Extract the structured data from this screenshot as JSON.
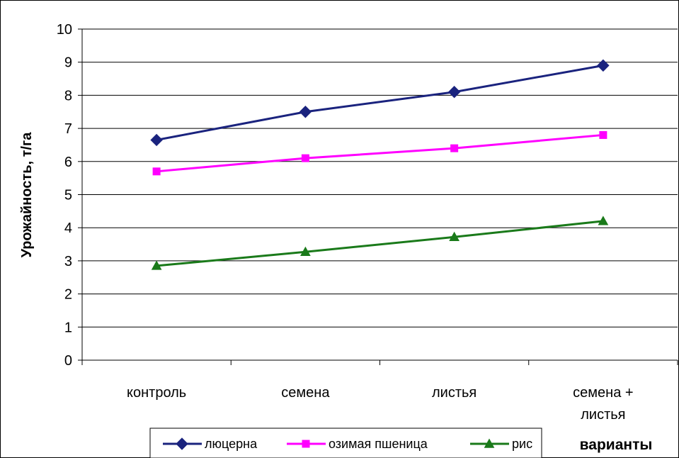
{
  "chart_data": {
    "type": "line",
    "categories": [
      "контроль",
      "семена",
      "листья",
      "семена + листья"
    ],
    "category_lines": [
      [
        "контроль"
      ],
      [
        "семена"
      ],
      [
        "листья"
      ],
      [
        "семена +",
        "листья"
      ]
    ],
    "ylabel": "Урожайность, т/га",
    "xlabel": "варианты",
    "ylim": [
      0,
      10
    ],
    "yticks": [
      0,
      1,
      2,
      3,
      4,
      5,
      6,
      7,
      8,
      9,
      10
    ],
    "grid": true,
    "legend_position": "bottom",
    "series": [
      {
        "name": "люцерна",
        "values": [
          6.65,
          7.5,
          8.1,
          8.9
        ],
        "color": "#1a237e",
        "marker": "diamond"
      },
      {
        "name": "озимая пшеница",
        "values": [
          5.7,
          6.1,
          6.4,
          6.8
        ],
        "color": "#ff00ff",
        "marker": "square"
      },
      {
        "name": "рис",
        "values": [
          2.85,
          3.27,
          3.72,
          4.2
        ],
        "color": "#1a7a1a",
        "marker": "triangle"
      }
    ]
  }
}
